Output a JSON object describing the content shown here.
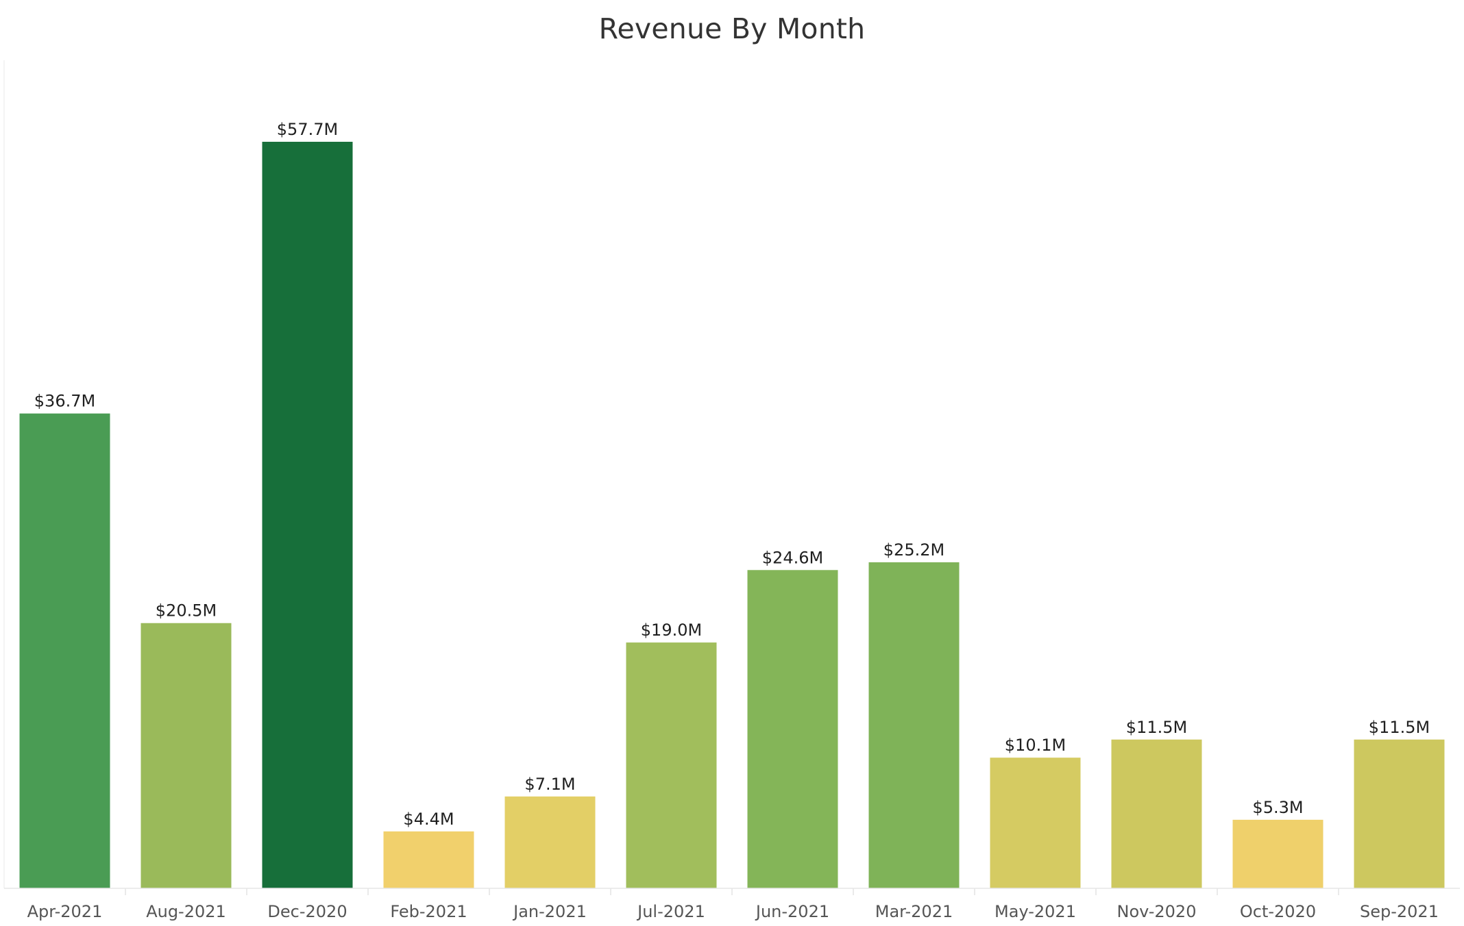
{
  "chart_data": {
    "type": "bar",
    "title": "Revenue By Month",
    "xlabel": "",
    "ylabel": "",
    "categories": [
      "Apr-2021",
      "Aug-2021",
      "Dec-2020",
      "Feb-2021",
      "Jan-2021",
      "Jul-2021",
      "Jun-2021",
      "Mar-2021",
      "May-2021",
      "Nov-2020",
      "Oct-2020",
      "Sep-2021"
    ],
    "values": [
      36.7,
      20.5,
      57.7,
      4.4,
      7.1,
      19.0,
      24.6,
      25.2,
      10.1,
      11.5,
      5.3,
      11.5
    ],
    "data_labels": [
      "$36.7M",
      "$20.5M",
      "$57.7M",
      "$4.4M",
      "$7.1M",
      "$19.0M",
      "$24.6M",
      "$25.2M",
      "$10.1M",
      "$11.5M",
      "$5.3M",
      "$11.5M"
    ],
    "colors": [
      "#4a9c54",
      "#9aba5a",
      "#176f3a",
      "#f1d06c",
      "#e3cf66",
      "#a1be5c",
      "#84b558",
      "#7fb358",
      "#d5cb62",
      "#cdc85f",
      "#efd06b",
      "#cdc85f"
    ],
    "ylim": [
      0,
      64
    ],
    "grid": false,
    "legend": "none"
  }
}
